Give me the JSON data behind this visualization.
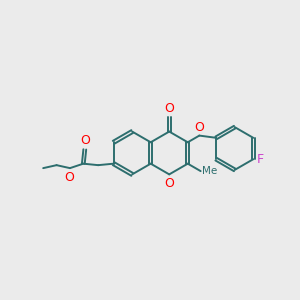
{
  "bg_color": "#ebebeb",
  "bond_color": "#2d6e6e",
  "oxygen_color": "#ff0000",
  "fluorine_color": "#cc44cc",
  "line_width": 1.4,
  "dbo": 0.055,
  "figsize": [
    3.0,
    3.0
  ],
  "dpi": 100,
  "xlim": [
    0,
    10
  ],
  "ylim": [
    0,
    10
  ],
  "bl": 0.78
}
